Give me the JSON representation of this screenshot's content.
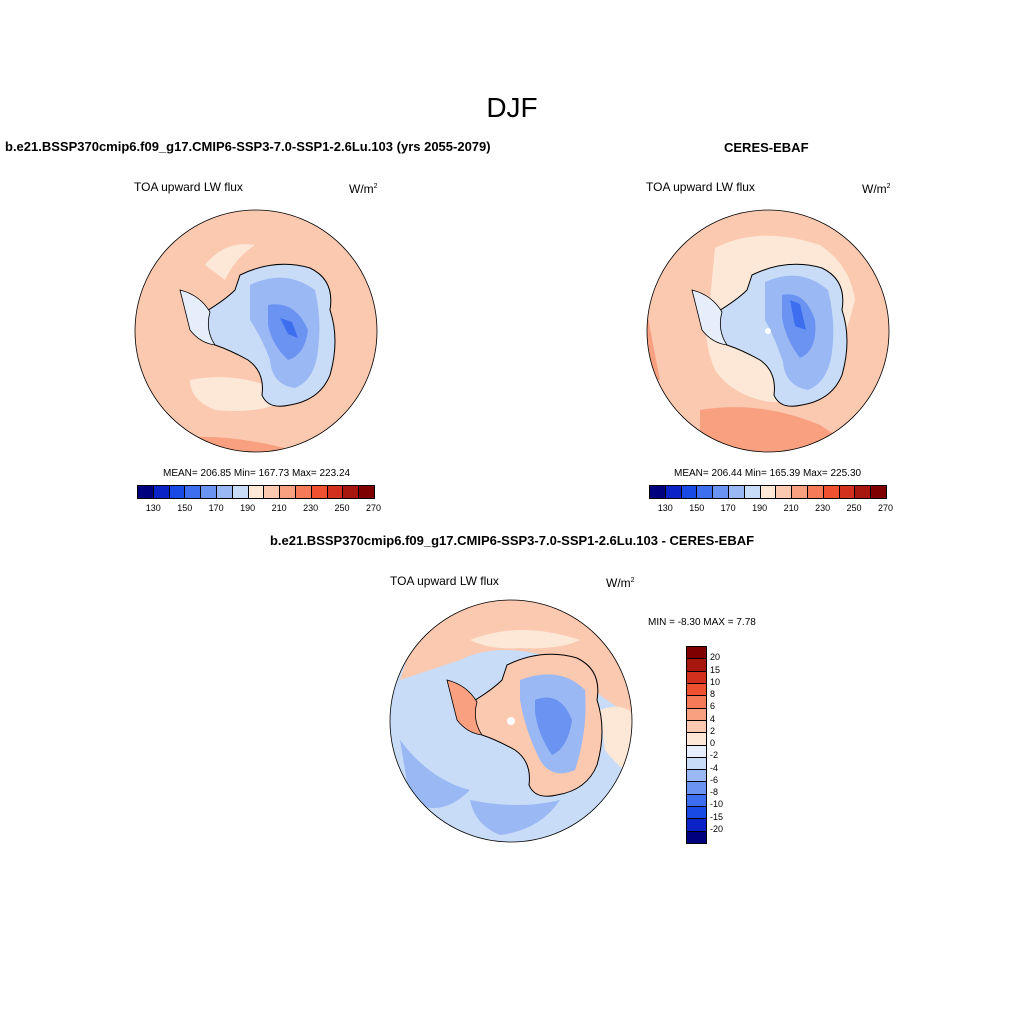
{
  "title": "DJF",
  "panels": [
    {
      "case": "b.e21.BSSP370cmip6.f09_g17.CMIP6-SSP3-7.0-SSP1-2.6Lu.103 (yrs 2055-2079)",
      "variable": "TOA upward LW flux",
      "units": "W/m",
      "units_exp": "2",
      "stats": "MEAN= 206.85  Min= 167.73  Max= 223.24",
      "ticks": [
        "130",
        "150",
        "170",
        "190",
        "210",
        "230",
        "250",
        "270"
      ]
    },
    {
      "case": "CERES-EBAF",
      "variable": "TOA upward LW flux",
      "units": "W/m",
      "units_exp": "2",
      "stats": "MEAN= 206.44  Min= 165.39  Max= 225.30",
      "ticks": [
        "130",
        "150",
        "170",
        "190",
        "210",
        "230",
        "250",
        "270"
      ]
    },
    {
      "case": "b.e21.BSSP370cmip6.f09_g17.CMIP6-SSP3-7.0-SSP1-2.6Lu.103 - CERES-EBAF",
      "variable": "TOA upward LW flux",
      "units": "W/m",
      "units_exp": "2",
      "stats": "MIN =  -8.30 MAX =   7.78",
      "ticks": [
        "20",
        "15",
        "10",
        "8",
        "6",
        "4",
        "2",
        "0",
        "-2",
        "-4",
        "-6",
        "-8",
        "-10",
        "-15",
        "-20"
      ]
    }
  ],
  "colors": {
    "abs_scale": [
      "#00007f",
      "#0a22c6",
      "#1a4ae6",
      "#3d6ef0",
      "#6b93f2",
      "#9ab8f4",
      "#c8dcf8",
      "#fde8d8",
      "#fbc8b0",
      "#f8a080",
      "#f47a58",
      "#ee5030",
      "#d4301e",
      "#a8170f",
      "#7f0000"
    ],
    "diff_scale": [
      "#7f0000",
      "#a8170f",
      "#d4301e",
      "#ee5030",
      "#f47a58",
      "#f8a080",
      "#fbc8b0",
      "#fde8d8",
      "#e6eefc",
      "#c8dcf8",
      "#9ab8f4",
      "#6b93f2",
      "#3d6ef0",
      "#1a4ae6",
      "#0a22c6",
      "#00007f"
    ]
  }
}
